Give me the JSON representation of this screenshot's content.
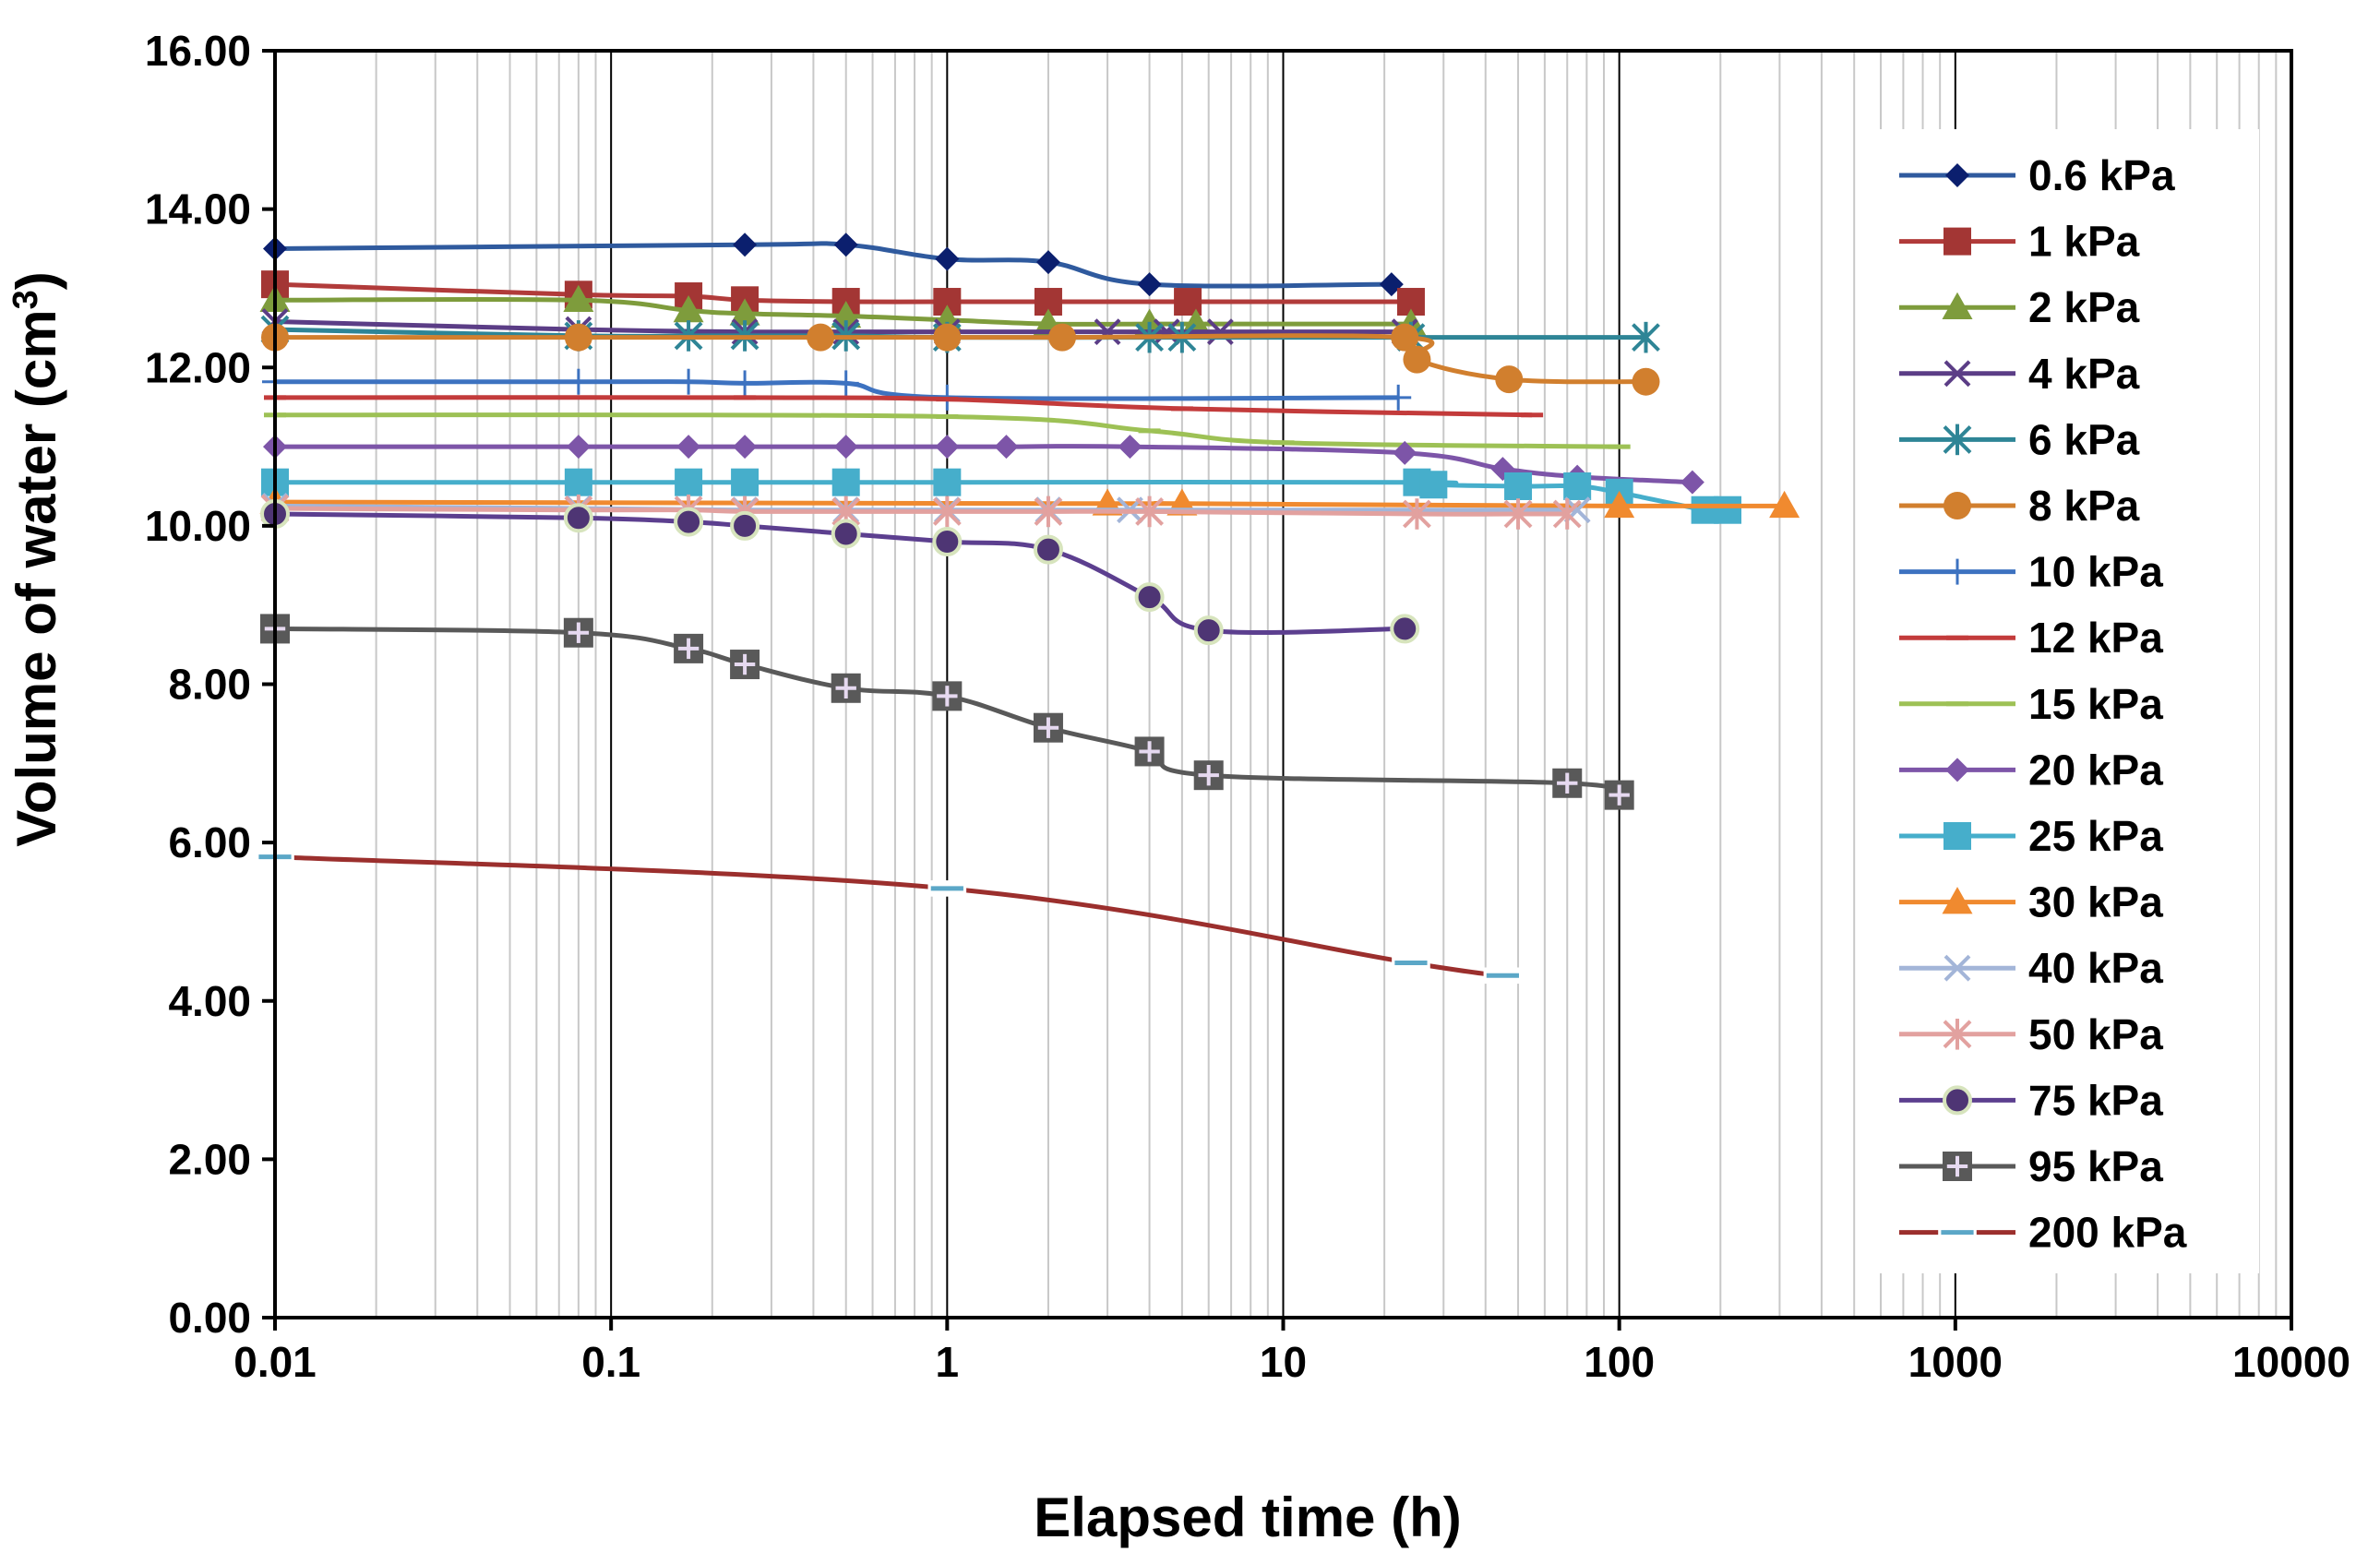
{
  "chart_data": {
    "type": "line",
    "title": "",
    "xlabel": "Elapsed time (h)",
    "ylabel_main": "Volume of water (cm",
    "ylabel_sup": "3",
    "ylabel_close": ")",
    "xscale": "log",
    "xlim": [
      0.01,
      10000
    ],
    "ylim": [
      0,
      16
    ],
    "grid": "log-minor vertical lines, major vertical lines at decades",
    "legend_position": "right",
    "x_ticks": [
      {
        "v": 0.01,
        "label": "0.01"
      },
      {
        "v": 0.1,
        "label": "0.1"
      },
      {
        "v": 1,
        "label": "1"
      },
      {
        "v": 10,
        "label": "10"
      },
      {
        "v": 100,
        "label": "100"
      },
      {
        "v": 1000,
        "label": "1000"
      },
      {
        "v": 10000,
        "label": "10000"
      }
    ],
    "y_ticks": [
      {
        "v": 0,
        "label": "0.00"
      },
      {
        "v": 2,
        "label": "2.00"
      },
      {
        "v": 4,
        "label": "4.00"
      },
      {
        "v": 6,
        "label": "6.00"
      },
      {
        "v": 8,
        "label": "8.00"
      },
      {
        "v": 10,
        "label": "10.00"
      },
      {
        "v": 12,
        "label": "12.00"
      },
      {
        "v": 14,
        "label": "14.00"
      },
      {
        "v": 16,
        "label": "16.00"
      }
    ],
    "series": [
      {
        "name": "0.6 kPa",
        "color": "#2F5A9E",
        "marker": "diamond",
        "marker_color": "#0B1F6E",
        "x": [
          0.01,
          0.25,
          0.5,
          1,
          2,
          4,
          21
        ],
        "y": [
          13.5,
          13.55,
          13.55,
          13.37,
          13.33,
          13.05,
          13.05
        ]
      },
      {
        "name": "1 kPa",
        "color": "#B13B3A",
        "marker": "square",
        "marker_color": "#A33634",
        "x": [
          0.01,
          0.08,
          0.17,
          0.25,
          0.5,
          1,
          2,
          5.2,
          24
        ],
        "y": [
          13.05,
          12.92,
          12.9,
          12.85,
          12.83,
          12.83,
          12.83,
          12.83,
          12.83
        ]
      },
      {
        "name": "2 kPa",
        "color": "#7E9C3C",
        "marker": "triangle",
        "marker_color": "#7E9C3C",
        "x": [
          0.01,
          0.08,
          0.17,
          0.25,
          0.5,
          1,
          2,
          4,
          5.5,
          24
        ],
        "y": [
          12.85,
          12.85,
          12.72,
          12.68,
          12.65,
          12.6,
          12.55,
          12.55,
          12.55,
          12.55
        ]
      },
      {
        "name": "4 kPa",
        "color": "#5B3D86",
        "marker": "x",
        "marker_color": "#5B3D86",
        "x": [
          0.01,
          0.08,
          0.25,
          0.5,
          1,
          3,
          4.5,
          6.5,
          23
        ],
        "y": [
          12.58,
          12.48,
          12.45,
          12.45,
          12.45,
          12.45,
          12.45,
          12.45,
          12.45
        ]
      },
      {
        "name": "6 kPa",
        "color": "#2E8596",
        "marker": "asterisk",
        "marker_color": "#2E8596",
        "x": [
          0.01,
          0.08,
          0.17,
          0.25,
          0.5,
          1,
          4,
          5,
          24,
          120
        ],
        "y": [
          12.48,
          12.4,
          12.4,
          12.4,
          12.4,
          12.38,
          12.38,
          12.38,
          12.38,
          12.38
        ]
      },
      {
        "name": "8 kPa",
        "color": "#D17F2E",
        "marker": "circle",
        "marker_color": "#D17F2E",
        "x": [
          0.01,
          0.08,
          0.42,
          1,
          2.2,
          23,
          25,
          47,
          120
        ],
        "y": [
          12.38,
          12.38,
          12.38,
          12.38,
          12.38,
          12.38,
          12.1,
          11.85,
          11.82
        ]
      },
      {
        "name": "10 kPa",
        "color": "#3D72C0",
        "marker": "plus",
        "marker_color": "#3D72C0",
        "x": [
          0.01,
          0.08,
          0.17,
          0.25,
          0.5,
          1,
          22
        ],
        "y": [
          11.82,
          11.82,
          11.82,
          11.8,
          11.8,
          11.62,
          11.62
        ]
      },
      {
        "name": "12 kPa",
        "color": "#C33B3B",
        "marker": "dash",
        "marker_color": "#C33B3B",
        "x": [
          0.01,
          0.25,
          1,
          5,
          55
        ],
        "y": [
          11.62,
          11.62,
          11.6,
          11.48,
          11.4
        ]
      },
      {
        "name": "15 kPa",
        "color": "#9DC155",
        "marker": "dash",
        "marker_color": "#9DC155",
        "x": [
          0.01,
          1,
          4,
          10,
          100
        ],
        "y": [
          11.4,
          11.38,
          11.2,
          11.05,
          11.0
        ]
      },
      {
        "name": "20 kPa",
        "color": "#7D55A8",
        "marker": "diamond",
        "marker_color": "#7D55A8",
        "x": [
          0.01,
          0.08,
          0.17,
          0.25,
          0.5,
          1,
          1.5,
          3.5,
          23,
          45,
          75,
          165
        ],
        "y": [
          11.0,
          11.0,
          11.0,
          11.0,
          11.0,
          11.0,
          11.0,
          11.0,
          10.92,
          10.72,
          10.62,
          10.55
        ]
      },
      {
        "name": "25 kPa",
        "color": "#46AECB",
        "marker": "square",
        "marker_color": "#46AECB",
        "x": [
          0.01,
          0.08,
          0.17,
          0.25,
          0.5,
          1,
          25,
          28,
          50,
          75,
          100,
          180,
          210
        ],
        "y": [
          10.55,
          10.55,
          10.55,
          10.55,
          10.55,
          10.55,
          10.55,
          10.52,
          10.5,
          10.5,
          10.42,
          10.2,
          10.2
        ]
      },
      {
        "name": "30 kPa",
        "color": "#F08A2F",
        "marker": "triangle",
        "marker_color": "#F08A2F",
        "x": [
          0.01,
          3,
          5,
          100,
          310
        ],
        "y": [
          10.3,
          10.28,
          10.28,
          10.25,
          10.25
        ]
      },
      {
        "name": "40 kPa",
        "color": "#A3B5D8",
        "marker": "x",
        "marker_color": "#A3B5D8",
        "x": [
          0.01,
          0.08,
          0.25,
          0.5,
          1,
          2,
          3.5,
          75
        ],
        "y": [
          10.25,
          10.22,
          10.2,
          10.2,
          10.2,
          10.2,
          10.2,
          10.2
        ]
      },
      {
        "name": "50 kPa",
        "color": "#E2A19F",
        "marker": "asterisk",
        "marker_color": "#E2A19F",
        "x": [
          0.01,
          0.08,
          0.17,
          0.25,
          0.5,
          1,
          2,
          4,
          25,
          50,
          70
        ],
        "y": [
          10.22,
          10.2,
          10.2,
          10.18,
          10.18,
          10.18,
          10.18,
          10.18,
          10.15,
          10.15,
          10.15
        ]
      },
      {
        "name": "75 kPa",
        "color": "#5C3F8F",
        "marker": "circle-ring",
        "marker_color": "#4E3574",
        "x": [
          0.01,
          0.08,
          0.17,
          0.25,
          0.5,
          1,
          2,
          4,
          6,
          23
        ],
        "y": [
          10.15,
          10.1,
          10.05,
          10.0,
          9.9,
          9.8,
          9.7,
          9.1,
          8.68,
          8.7
        ]
      },
      {
        "name": "95 kPa",
        "color": "#595959",
        "marker": "square-plus",
        "marker_color": "#595959",
        "x": [
          0.01,
          0.08,
          0.17,
          0.25,
          0.5,
          1,
          2,
          4,
          6,
          70,
          100
        ],
        "y": [
          8.7,
          8.65,
          8.45,
          8.25,
          7.95,
          7.85,
          7.45,
          7.15,
          6.85,
          6.75,
          6.6
        ]
      },
      {
        "name": "200 kPa",
        "color": "#9B2F2D",
        "marker": "dash-box",
        "marker_color": "#5BA7C7",
        "x": [
          0.01,
          1,
          24,
          45
        ],
        "y": [
          5.82,
          5.42,
          4.48,
          4.32
        ]
      }
    ]
  }
}
